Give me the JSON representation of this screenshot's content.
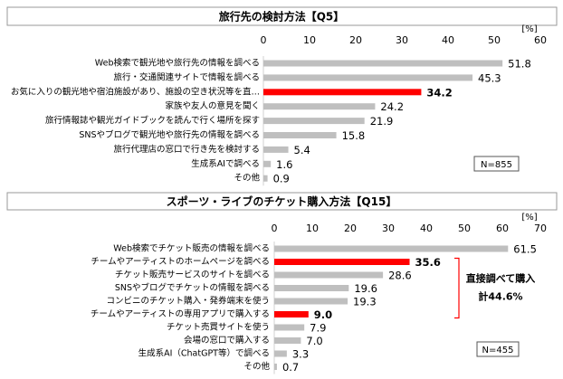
{
  "chart_data": [
    {
      "type": "bar",
      "title": "旅行先の検討方法【Q5】",
      "unit": "[%]",
      "categories": [
        "Web検索で観光地や旅行先の情報を調べる",
        "旅行・交通関連サイトで情報を調べる",
        "お気に入りの観光地や宿泊施設があり、施設の空き状況等を直…",
        "家族や友人の意見を聞く",
        "旅行情報誌や観光ガイドブックを読んで行く場所を探す",
        "SNSやブログで観光地や旅行先の情報を調べる",
        "旅行代理店の窓口で行き先を検討する",
        "生成系AIで調べる",
        "その他"
      ],
      "values": [
        51.8,
        45.3,
        34.2,
        24.2,
        21.9,
        15.8,
        5.4,
        1.6,
        0.9
      ],
      "colors": [
        "#bfbfbf",
        "#bfbfbf",
        "#ff0000",
        "#bfbfbf",
        "#bfbfbf",
        "#bfbfbf",
        "#bfbfbf",
        "#bfbfbf",
        "#bfbfbf"
      ],
      "xlim": [
        0,
        60
      ],
      "xticks": [
        0,
        10,
        20,
        30,
        40,
        50,
        60
      ],
      "note": "N=855"
    },
    {
      "type": "bar",
      "title": "スポーツ・ライブのチケット購入方法【Q15】",
      "unit": "[%]",
      "categories": [
        "Web検索でチケット販売の情報を調べる",
        "チームやアーティストのホームページを調べる",
        "チケット販売サービスのサイトを調べる",
        "SNSやブログでチケットの情報を調べる",
        "コンビニのチケット購入・発券端末を使う",
        "チームやアーティストの専用アプリで購入する",
        "チケット売買サイトを使う",
        "会場の窓口で購入する",
        "生成系AI（ChatGPT等）で調べる",
        "その他"
      ],
      "values": [
        61.5,
        35.6,
        28.6,
        19.6,
        19.3,
        9.0,
        7.9,
        7.0,
        3.3,
        0.7
      ],
      "value_labels": [
        "61.5",
        "35.6",
        "28.6",
        "19.6",
        "19.3",
        "9.0",
        "7.9",
        "7.0",
        "3.3",
        "0.7"
      ],
      "colors": [
        "#bfbfbf",
        "#ff0000",
        "#bfbfbf",
        "#bfbfbf",
        "#bfbfbf",
        "#ff0000",
        "#bfbfbf",
        "#bfbfbf",
        "#bfbfbf",
        "#bfbfbf"
      ],
      "xlim": [
        0,
        70
      ],
      "xticks": [
        0,
        10,
        20,
        30,
        40,
        50,
        60,
        70
      ],
      "note": "N=455",
      "annotation": [
        "直接調べて購入",
        "計44.6%"
      ]
    }
  ]
}
